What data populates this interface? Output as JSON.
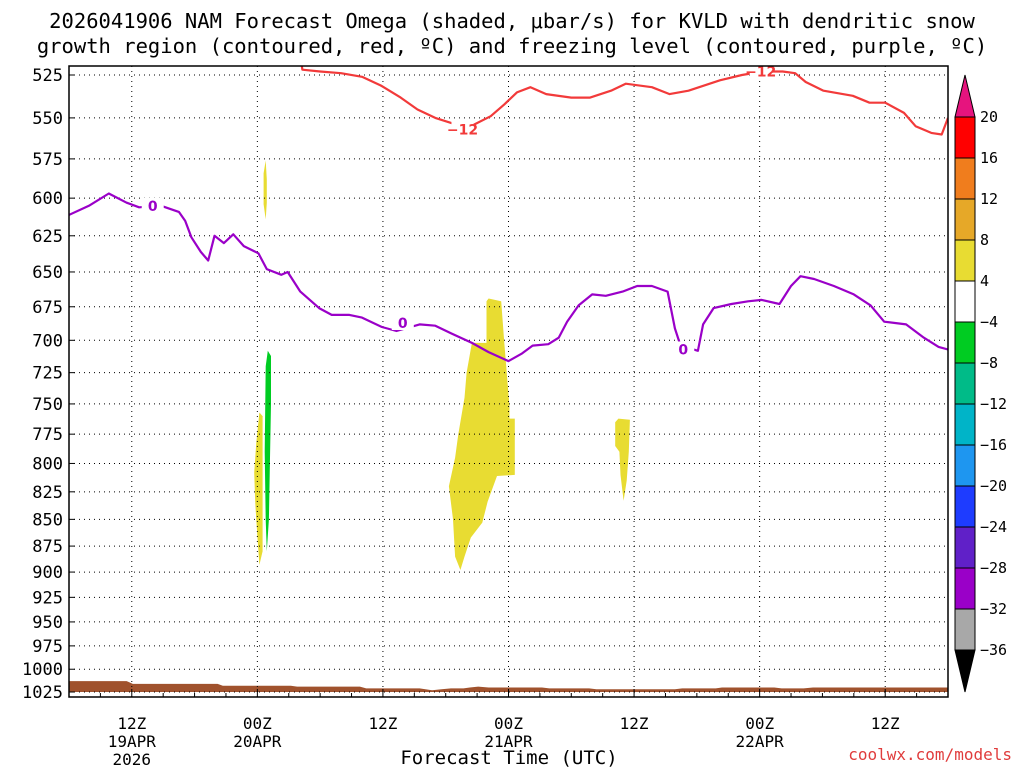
{
  "title_line1": "2026041906 NAM Forecast Omega (shaded, μbar/s) for KVLD with dendritic snow",
  "title_line2": "growth region (contoured, red, ºC) and freezing level (contoured, purple, ºC)",
  "credit": "coolwx.com/models",
  "colors": {
    "dgz_contour": "#f23a3a",
    "freezing_contour": "#9a00c8",
    "terrain": "#a0522d",
    "credit_text": "#e03c3c"
  },
  "chart_data": {
    "type": "heatmap",
    "title": "2026041906 NAM Forecast Omega (shaded, μbar/s) for KVLD with dendritic snow growth region (contoured, red, ºC) and freezing level (contoured, purple, ºC)",
    "xlabel": "Forecast Time (UTC)",
    "ylabel": "",
    "x_unit": "hours since 2026-04-19 06Z",
    "xlim": [
      0,
      84
    ],
    "ylim": [
      1025,
      500
    ],
    "y_ticks": [
      525,
      550,
      575,
      600,
      625,
      650,
      675,
      700,
      725,
      750,
      775,
      800,
      825,
      850,
      875,
      900,
      925,
      950,
      975,
      1000,
      1025
    ],
    "x_ticks": [
      {
        "x": 6,
        "lines": [
          "12Z",
          "19APR",
          "2026"
        ]
      },
      {
        "x": 18,
        "lines": [
          "00Z",
          "20APR"
        ]
      },
      {
        "x": 30,
        "lines": [
          "12Z"
        ]
      },
      {
        "x": 42,
        "lines": [
          "00Z",
          "21APR"
        ]
      },
      {
        "x": 54,
        "lines": [
          "12Z"
        ]
      },
      {
        "x": 66,
        "lines": [
          "00Z",
          "22APR"
        ]
      },
      {
        "x": 78,
        "lines": [
          "12Z"
        ]
      }
    ],
    "grid": true,
    "colorbar": {
      "labels": [
        "20",
        "16",
        "12",
        "8",
        "4",
        "−4",
        "−8",
        "−12",
        "−16",
        "−20",
        "−24",
        "−28",
        "−32",
        "−36"
      ],
      "colors": [
        "#ff0000",
        "#f07d1d",
        "#e6a828",
        "#e8dc32",
        "#ffffff",
        "#00cc22",
        "#00bb88",
        "#00b4c8",
        "#1e96f0",
        "#1e3cff",
        "#6020c8",
        "#9a00c8",
        "#a8a8a8"
      ],
      "top_arrow": "#e6147e",
      "bottom_arrow": "#000000"
    },
    "series": [
      {
        "name": "-12",
        "kind": "contour",
        "color": "#f23a3a",
        "labels": [
          {
            "x": 37.6,
            "y": 557
          },
          {
            "x": 66.1,
            "y": 523
          }
        ],
        "points": [
          [
            21.7,
            500
          ],
          [
            22.3,
            522
          ],
          [
            24,
            523
          ],
          [
            26,
            524
          ],
          [
            28,
            526
          ],
          [
            29.8,
            531
          ],
          [
            31.7,
            538
          ],
          [
            33.3,
            545
          ],
          [
            35,
            550
          ],
          [
            37,
            554
          ],
          [
            38.7,
            554
          ],
          [
            40.3,
            549
          ],
          [
            41.6,
            542
          ],
          [
            42.8,
            535
          ],
          [
            44.1,
            532
          ],
          [
            45.6,
            536
          ],
          [
            48,
            538
          ],
          [
            49.8,
            538
          ],
          [
            51.8,
            534
          ],
          [
            53.2,
            530
          ],
          [
            55.7,
            532
          ],
          [
            57.4,
            536
          ],
          [
            59.2,
            534
          ],
          [
            62.2,
            528
          ],
          [
            64.3,
            525
          ],
          [
            66.3,
            523
          ],
          [
            68.2,
            523
          ],
          [
            69.4,
            524
          ],
          [
            70.4,
            529
          ],
          [
            72.1,
            534
          ],
          [
            74.9,
            537
          ],
          [
            76.5,
            541
          ],
          [
            78,
            541
          ],
          [
            79.8,
            547
          ],
          [
            80.9,
            555
          ],
          [
            82.4,
            559
          ],
          [
            83.4,
            560
          ],
          [
            84,
            550
          ]
        ]
      },
      {
        "name": "0",
        "kind": "contour",
        "color": "#9a00c8",
        "labels": [
          {
            "x": 8.0,
            "y": 605
          },
          {
            "x": 31.9,
            "y": 687
          },
          {
            "x": 58.7,
            "y": 707
          }
        ],
        "points": [
          [
            0,
            611
          ],
          [
            1.9,
            605
          ],
          [
            3.8,
            597
          ],
          [
            5.5,
            603
          ],
          [
            6.7,
            606
          ],
          [
            8.8,
            605
          ],
          [
            10.5,
            609
          ],
          [
            11.1,
            615
          ],
          [
            11.7,
            626
          ],
          [
            12.6,
            636
          ],
          [
            13.3,
            642
          ],
          [
            13.9,
            625
          ],
          [
            14.8,
            630
          ],
          [
            15.7,
            624
          ],
          [
            16.7,
            632
          ],
          [
            18.1,
            637
          ],
          [
            18.9,
            648
          ],
          [
            20.3,
            652
          ],
          [
            20.9,
            650
          ],
          [
            22.1,
            664
          ],
          [
            23.9,
            676
          ],
          [
            25.1,
            681
          ],
          [
            26.8,
            681
          ],
          [
            28,
            683
          ],
          [
            29.9,
            690
          ],
          [
            31.3,
            693
          ],
          [
            33.5,
            688
          ],
          [
            35,
            689
          ],
          [
            36.6,
            695
          ],
          [
            38.5,
            702
          ],
          [
            40.1,
            709
          ],
          [
            42,
            716
          ],
          [
            43.3,
            710
          ],
          [
            44.3,
            704
          ],
          [
            45.8,
            703
          ],
          [
            46.8,
            698
          ],
          [
            47.6,
            686
          ],
          [
            48.7,
            674
          ],
          [
            50,
            666
          ],
          [
            51.3,
            667
          ],
          [
            52.9,
            664
          ],
          [
            54.3,
            660
          ],
          [
            55.7,
            660
          ],
          [
            57.2,
            664
          ],
          [
            57.9,
            691
          ],
          [
            58.6,
            708
          ],
          [
            59.3,
            706
          ],
          [
            60.1,
            708
          ],
          [
            60.6,
            688
          ],
          [
            61.6,
            676
          ],
          [
            63.3,
            673
          ],
          [
            64.9,
            671
          ],
          [
            66.2,
            670
          ],
          [
            67.9,
            673
          ],
          [
            69,
            660
          ],
          [
            69.9,
            653
          ],
          [
            71.2,
            655
          ],
          [
            73.1,
            660
          ],
          [
            75,
            666
          ],
          [
            76.6,
            674
          ],
          [
            77.9,
            686
          ],
          [
            80,
            688
          ],
          [
            81.7,
            698
          ],
          [
            83.1,
            705
          ],
          [
            84,
            707
          ]
        ]
      },
      {
        "name": "Terrain",
        "kind": "fill",
        "color": "#a0522d",
        "points": [
          [
            0,
            1013
          ],
          [
            5.5,
            1013
          ],
          [
            6.1,
            1016
          ],
          [
            14.2,
            1016
          ],
          [
            14.7,
            1018
          ],
          [
            21.2,
            1018
          ],
          [
            21.8,
            1019
          ],
          [
            27.8,
            1019
          ],
          [
            28.4,
            1021
          ],
          [
            33.5,
            1021
          ],
          [
            34.7,
            1023
          ],
          [
            35.6,
            1022
          ],
          [
            36.5,
            1021
          ],
          [
            37.7,
            1021
          ],
          [
            38.3,
            1020
          ],
          [
            39.1,
            1019
          ],
          [
            40.1,
            1020
          ],
          [
            45.2,
            1020
          ],
          [
            45.9,
            1021
          ],
          [
            49.7,
            1021
          ],
          [
            50.4,
            1022
          ],
          [
            57.9,
            1022
          ],
          [
            58.6,
            1021
          ],
          [
            61.8,
            1021
          ],
          [
            62.4,
            1020
          ],
          [
            67.4,
            1020
          ],
          [
            68.1,
            1021
          ],
          [
            70.2,
            1021
          ],
          [
            71.1,
            1020
          ],
          [
            84,
            1020
          ],
          [
            84,
            1025
          ],
          [
            0,
            1025
          ]
        ]
      },
      {
        "name": "omega_pos_1",
        "kind": "fill",
        "color": "#e8dc32",
        "points": [
          [
            18.6,
            584
          ],
          [
            18.8,
            576
          ],
          [
            18.9,
            588
          ],
          [
            18.9,
            603
          ],
          [
            18.8,
            614
          ],
          [
            18.6,
            604
          ]
        ]
      },
      {
        "name": "omega_pos_2",
        "kind": "fill",
        "color": "#e8dc32",
        "points": [
          [
            17.7,
            808
          ],
          [
            17.9,
            782
          ],
          [
            18.2,
            757
          ],
          [
            18.5,
            760
          ],
          [
            18.5,
            800
          ],
          [
            18.5,
            840
          ],
          [
            18.5,
            880
          ],
          [
            18.2,
            893
          ],
          [
            18.0,
            866
          ],
          [
            17.8,
            836
          ]
        ]
      },
      {
        "name": "omega_neg_1",
        "kind": "fill",
        "color": "#00cc22",
        "points": [
          [
            18.8,
            720
          ],
          [
            19.0,
            708
          ],
          [
            19.3,
            712
          ],
          [
            19.3,
            750
          ],
          [
            19.2,
            800
          ],
          [
            19.1,
            850
          ],
          [
            18.9,
            880
          ],
          [
            18.8,
            850
          ],
          [
            18.7,
            790
          ]
        ]
      },
      {
        "name": "omega_pos_3",
        "kind": "fill",
        "color": "#e8dc32",
        "points": [
          [
            38,
            725
          ],
          [
            38.5,
            702
          ],
          [
            39.9,
            702
          ],
          [
            39.9,
            671
          ],
          [
            40.1,
            669
          ],
          [
            41.3,
            671
          ],
          [
            41.6,
            702
          ],
          [
            42.1,
            752
          ],
          [
            42.1,
            762
          ],
          [
            42.6,
            762
          ],
          [
            42.6,
            810
          ],
          [
            40.9,
            811
          ],
          [
            40,
            834
          ],
          [
            39.5,
            853
          ],
          [
            38.4,
            867
          ],
          [
            37.8,
            885
          ],
          [
            37.4,
            898
          ],
          [
            36.9,
            885
          ],
          [
            36.7,
            850
          ],
          [
            36.3,
            820
          ],
          [
            36.9,
            795
          ],
          [
            37.2,
            775
          ],
          [
            37.8,
            745
          ]
        ]
      },
      {
        "name": "omega_pos_4",
        "kind": "fill",
        "color": "#e8dc32",
        "points": [
          [
            52.2,
            765
          ],
          [
            52.5,
            762
          ],
          [
            53.6,
            763
          ],
          [
            53.5,
            790
          ],
          [
            53.3,
            815
          ],
          [
            53.0,
            833
          ],
          [
            52.7,
            810
          ],
          [
            52.6,
            790
          ],
          [
            52.2,
            785
          ]
        ]
      }
    ]
  }
}
